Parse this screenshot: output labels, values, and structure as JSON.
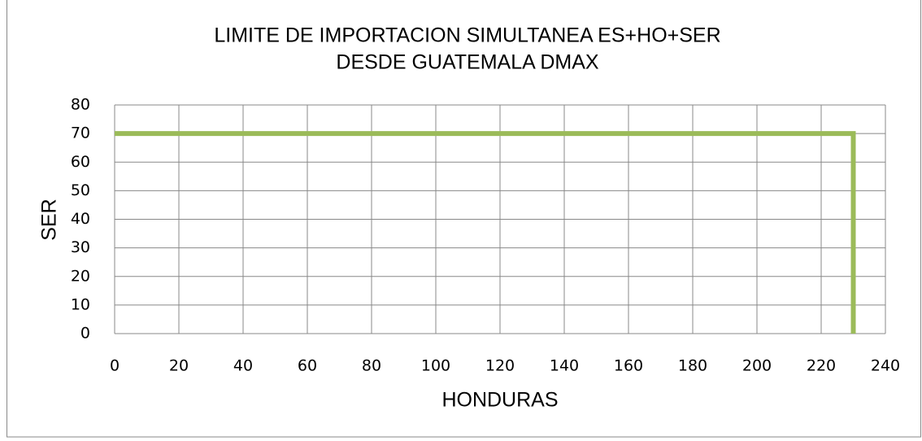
{
  "chart_data": {
    "type": "line",
    "title": [
      "LIMITE DE IMPORTACION SIMULTANEA ES+HO+SER",
      "DESDE GUATEMALA DMAX"
    ],
    "x_label": "HONDURAS",
    "y_label": "SER",
    "x": [
      0,
      230,
      230
    ],
    "series": [
      {
        "name": "SER",
        "color": "#9bbb59",
        "values": [
          70,
          70,
          0
        ]
      }
    ],
    "xlim": [
      0,
      240
    ],
    "xticks": [
      0,
      20,
      40,
      60,
      80,
      100,
      120,
      140,
      160,
      180,
      200,
      220,
      240
    ],
    "ylim": [
      0,
      80
    ],
    "yticks": [
      0,
      10,
      20,
      30,
      40,
      50,
      60,
      70,
      80
    ],
    "grid": true
  }
}
